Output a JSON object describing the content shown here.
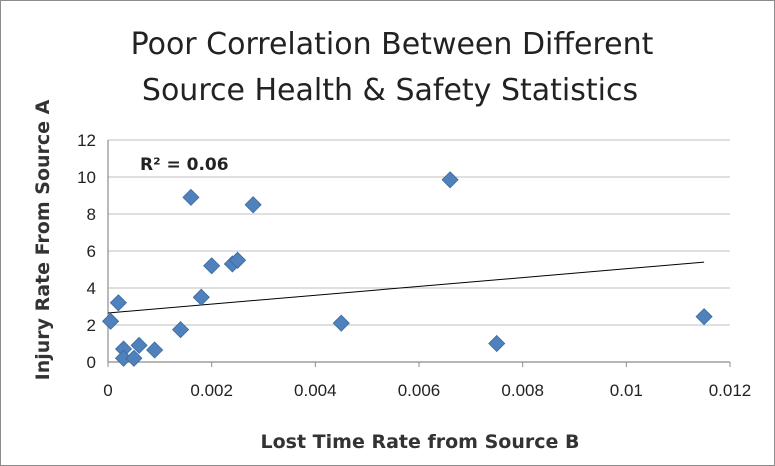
{
  "chart_data": {
    "type": "scatter",
    "title_lines": [
      "Poor Correlation Between Different",
      "Source Health & Safety Statistics"
    ],
    "xlabel": "Lost Time Rate from Source B",
    "ylabel": "Injury Rate From Source A",
    "xlim": [
      0,
      0.012
    ],
    "ylim": [
      0,
      12
    ],
    "x_ticks": [
      "0",
      "0.002",
      "0.004",
      "0.006",
      "0.008",
      "0.01",
      "0.012"
    ],
    "y_ticks": [
      "0",
      "2",
      "4",
      "6",
      "8",
      "10",
      "12"
    ],
    "grid": "horizontal",
    "legend": "none",
    "marker": "diamond",
    "marker_color": "#4f81bd",
    "trendline_color": "#000000",
    "annotation": "R² = 0.06",
    "points": [
      {
        "x": 5e-05,
        "y": 2.2
      },
      {
        "x": 0.0002,
        "y": 3.2
      },
      {
        "x": 0.0003,
        "y": 0.7
      },
      {
        "x": 0.0003,
        "y": 0.2
      },
      {
        "x": 0.0005,
        "y": 0.2
      },
      {
        "x": 0.0006,
        "y": 0.9
      },
      {
        "x": 0.0009,
        "y": 0.65
      },
      {
        "x": 0.0014,
        "y": 1.75
      },
      {
        "x": 0.0016,
        "y": 8.9
      },
      {
        "x": 0.0018,
        "y": 3.5
      },
      {
        "x": 0.002,
        "y": 5.2
      },
      {
        "x": 0.0024,
        "y": 5.3
      },
      {
        "x": 0.0025,
        "y": 5.5
      },
      {
        "x": 0.0028,
        "y": 8.5
      },
      {
        "x": 0.0045,
        "y": 2.1
      },
      {
        "x": 0.0066,
        "y": 9.85
      },
      {
        "x": 0.0075,
        "y": 1.0
      },
      {
        "x": 0.0115,
        "y": 2.45
      }
    ],
    "trendline": {
      "x": [
        0,
        0.0115
      ],
      "y": [
        2.65,
        5.4
      ]
    }
  }
}
